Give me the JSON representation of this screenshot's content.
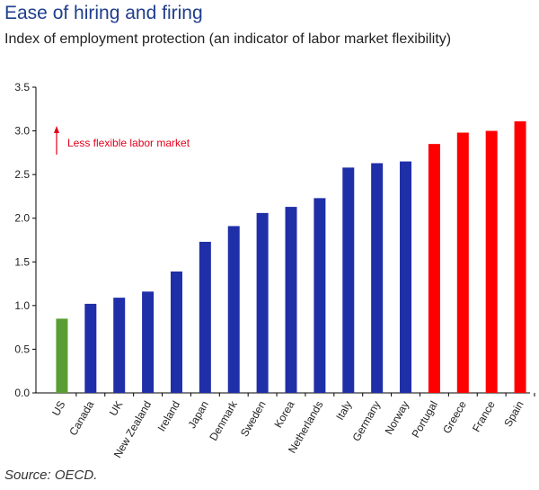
{
  "header": {
    "title": "Ease of hiring and firing",
    "subtitle": "Index of employment protection (an indicator of labor market flexibility)"
  },
  "footer": {
    "source": "Source: OECD."
  },
  "annotation": {
    "text": "Less flexible labor market",
    "color": "#e3001b"
  },
  "colors": {
    "green": "#5a9e33",
    "blue": "#1f2fa8",
    "red": "#ff0000"
  },
  "chart_data": {
    "type": "bar",
    "title": "",
    "xlabel": "",
    "ylabel": "",
    "ylim": [
      0,
      3.5
    ],
    "yticks": [
      "0.0",
      "0.5",
      "1.0",
      "1.5",
      "2.0",
      "2.5",
      "3.0",
      "3.5"
    ],
    "grid": false,
    "categories": [
      "US",
      "Canada",
      "UK",
      "New Zealand",
      "Ireland",
      "Japan",
      "Denmark",
      "Sweden",
      "Korea",
      "Netherlands",
      "Italy",
      "Germany",
      "Norway",
      "Portugal",
      "Greece",
      "France",
      "Spain"
    ],
    "values": [
      0.85,
      1.02,
      1.09,
      1.16,
      1.39,
      1.73,
      1.91,
      2.06,
      2.13,
      2.23,
      2.58,
      2.63,
      2.65,
      2.85,
      2.98,
      3.0,
      3.11
    ],
    "bar_colors": [
      "green",
      "blue",
      "blue",
      "blue",
      "blue",
      "blue",
      "blue",
      "blue",
      "blue",
      "blue",
      "blue",
      "blue",
      "blue",
      "red",
      "red",
      "red",
      "red"
    ]
  }
}
